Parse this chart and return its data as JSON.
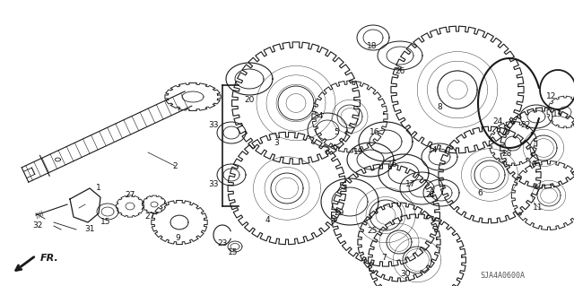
{
  "bg_color": "#ffffff",
  "fig_width": 6.4,
  "fig_height": 3.19,
  "dpi": 100,
  "watermark": "SJA4A0600A",
  "arrow_label": "FR."
}
